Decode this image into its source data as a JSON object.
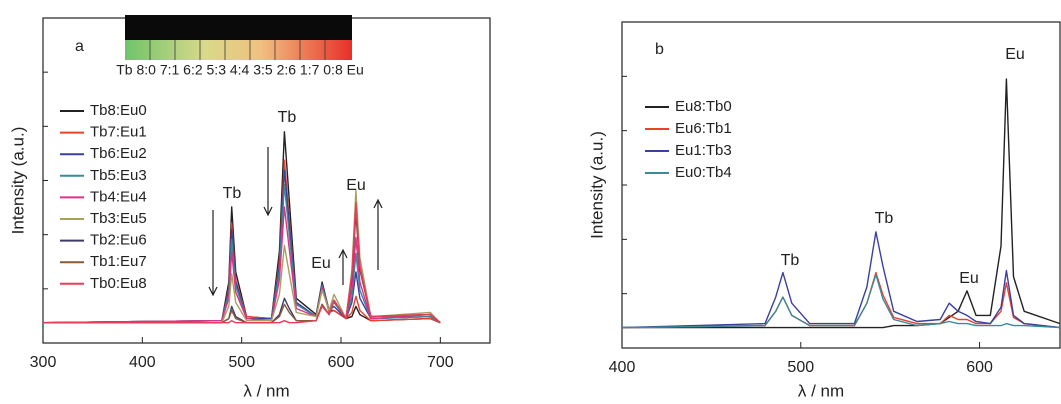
{
  "chart_data": [
    {
      "type": "line",
      "panel_label": "a",
      "xlabel": "λ / nm",
      "ylabel": "Intensity (a.u.)",
      "xlim": [
        300,
        750
      ],
      "ylim": [
        -10,
        150
      ],
      "xticks": [
        300,
        400,
        500,
        600,
        700
      ],
      "inset_label": "Tb 8:0 7:1 6:2 5:3 4:4 3:5 2:6 1:7 0:8 Eu",
      "annotations": [
        "Tb",
        "Tb",
        "Eu",
        "Eu"
      ],
      "x": [
        300,
        480,
        487,
        490,
        494,
        505,
        530,
        538,
        543,
        548,
        555,
        575,
        581,
        588,
        593,
        605,
        611,
        615,
        619,
        630,
        690,
        700
      ],
      "series": [
        {
          "name": "Tb8:Eu0",
          "color": "#222222",
          "values": [
            0,
            1,
            20,
            57,
            25,
            3,
            2,
            35,
            94,
            60,
            12,
            4,
            20,
            6,
            6,
            2,
            3,
            8,
            4,
            1,
            2,
            0
          ]
        },
        {
          "name": "Tb7:Eu1",
          "color": "#e8412c",
          "values": [
            0,
            1,
            17,
            49,
            21,
            3,
            2,
            30,
            80,
            51,
            10,
            3,
            18,
            5,
            6,
            2,
            5,
            13,
            6,
            1,
            2,
            0
          ]
        },
        {
          "name": "Tb6:Eu2",
          "color": "#3b3f9e",
          "values": [
            0,
            1,
            16,
            46,
            20,
            2,
            2,
            28,
            75,
            48,
            10,
            3,
            19,
            6,
            8,
            2,
            10,
            25,
            12,
            2,
            3,
            0
          ]
        },
        {
          "name": "Tb5:Eu3",
          "color": "#3a8a9a",
          "values": [
            0,
            1,
            14,
            41,
            18,
            2,
            1,
            25,
            68,
            43,
            9,
            3,
            18,
            6,
            10,
            2,
            13,
            34,
            16,
            2,
            3,
            0
          ]
        },
        {
          "name": "Tb4:Eu4",
          "color": "#e0308a",
          "values": [
            0,
            1,
            12,
            35,
            15,
            2,
            1,
            21,
            57,
            36,
            7,
            3,
            17,
            6,
            11,
            2,
            17,
            42,
            20,
            2,
            4,
            0
          ]
        },
        {
          "name": "Tb3:Eu5",
          "color": "#a89f5c",
          "values": [
            0,
            0,
            8,
            24,
            10,
            1,
            1,
            14,
            38,
            24,
            5,
            3,
            16,
            6,
            14,
            2,
            26,
            65,
            32,
            3,
            5,
            0
          ]
        },
        {
          "name": "Tb2:Eu6",
          "color": "#3c3a6e",
          "values": [
            0,
            0,
            2,
            8,
            3,
            0,
            0,
            4,
            12,
            7,
            1,
            1,
            9,
            4,
            11,
            2,
            22,
            54,
            26,
            3,
            4,
            0
          ]
        },
        {
          "name": "Tb1:Eu7",
          "color": "#8a5a3c",
          "values": [
            0,
            0,
            2,
            6,
            2,
            0,
            0,
            3,
            9,
            5,
            1,
            1,
            9,
            4,
            11,
            2,
            23,
            57,
            27,
            3,
            4,
            0
          ]
        },
        {
          "name": "Tb0:Eu8",
          "color": "#e83d5a",
          "values": [
            0,
            0,
            0,
            1,
            0,
            0,
            0,
            0,
            1,
            0,
            0,
            1,
            8,
            4,
            11,
            2,
            24,
            59,
            28,
            3,
            4,
            0
          ]
        }
      ]
    },
    {
      "type": "line",
      "panel_label": "b",
      "xlabel": "λ / nm",
      "ylabel": "Intensity (a.u.)",
      "xlim": [
        400,
        645
      ],
      "ylim": [
        -10,
        150
      ],
      "xticks": [
        400,
        500,
        600
      ],
      "annotations": [
        "Tb",
        "Tb",
        "Eu",
        "Eu"
      ],
      "x": [
        400,
        480,
        486,
        490,
        495,
        505,
        530,
        537,
        542,
        546,
        552,
        565,
        578,
        583,
        588,
        593,
        598,
        606,
        612,
        615,
        619,
        625,
        645
      ],
      "series": [
        {
          "name": "Eu8:Tb0",
          "color": "#222222",
          "values": [
            0,
            0,
            0,
            0,
            0,
            0,
            0,
            0,
            0,
            0,
            1,
            1,
            2,
            5,
            8,
            18,
            6,
            6,
            40,
            122,
            25,
            8,
            2
          ]
        },
        {
          "name": "Eu6:Tb1",
          "color": "#e8412c",
          "values": [
            0,
            1,
            8,
            15,
            6,
            1,
            1,
            12,
            27,
            16,
            5,
            2,
            2,
            6,
            4,
            4,
            2,
            2,
            8,
            22,
            5,
            2,
            0
          ]
        },
        {
          "name": "Eu1:Tb3",
          "color": "#3b3f9e",
          "values": [
            0,
            2,
            15,
            27,
            12,
            2,
            2,
            20,
            47,
            30,
            8,
            3,
            4,
            12,
            8,
            6,
            3,
            2,
            10,
            28,
            6,
            2,
            0
          ]
        },
        {
          "name": "Eu0:Tb4",
          "color": "#3a8a9a",
          "values": [
            0,
            1,
            8,
            15,
            6,
            1,
            1,
            12,
            26,
            14,
            4,
            1,
            2,
            3,
            2,
            2,
            1,
            1,
            1,
            2,
            1,
            1,
            0
          ]
        }
      ]
    }
  ]
}
